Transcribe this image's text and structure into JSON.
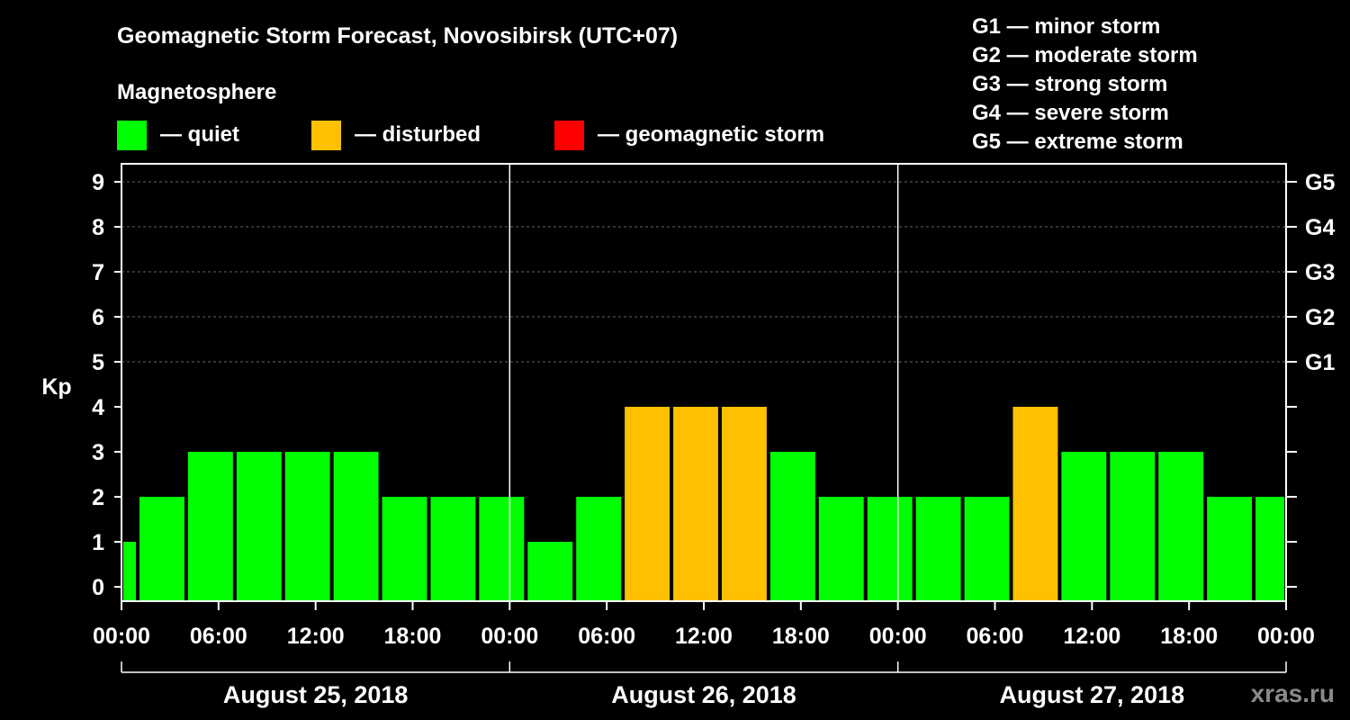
{
  "chart_data": {
    "type": "bar",
    "title": "Geomagnetic Storm Forecast, Novosibirsk (UTC+07)",
    "subtitle": "Magnetosphere",
    "ylabel": "Kp",
    "ylim": [
      0,
      9
    ],
    "yticks": [
      "0",
      "1",
      "2",
      "3",
      "4",
      "5",
      "6",
      "7",
      "8",
      "9"
    ],
    "storm_ticks": [
      {
        "kp": 5,
        "label": "G1"
      },
      {
        "kp": 6,
        "label": "G2"
      },
      {
        "kp": 7,
        "label": "G3"
      },
      {
        "kp": 8,
        "label": "G4"
      },
      {
        "kp": 9,
        "label": "G5"
      }
    ],
    "status_legend": [
      {
        "key": "quiet",
        "label": "— quiet",
        "color": "#00ff00"
      },
      {
        "key": "disturbed",
        "label": "— disturbed",
        "color": "#ffc000"
      },
      {
        "key": "storm",
        "label": "— geomagnetic storm",
        "color": "#ff0000"
      }
    ],
    "g_scale": [
      "G1 — minor storm",
      "G2 — moderate storm",
      "G3 — strong storm",
      "G4 — severe storm",
      "G5 — extreme storm"
    ],
    "x_range_hours": [
      0,
      72
    ],
    "x_ticks": [
      {
        "hour": 0,
        "label": "00:00"
      },
      {
        "hour": 6,
        "label": "06:00"
      },
      {
        "hour": 12,
        "label": "12:00"
      },
      {
        "hour": 18,
        "label": "18:00"
      },
      {
        "hour": 24,
        "label": "00:00"
      },
      {
        "hour": 30,
        "label": "06:00"
      },
      {
        "hour": 36,
        "label": "12:00"
      },
      {
        "hour": 42,
        "label": "18:00"
      },
      {
        "hour": 48,
        "label": "00:00"
      },
      {
        "hour": 54,
        "label": "06:00"
      },
      {
        "hour": 60,
        "label": "12:00"
      },
      {
        "hour": 66,
        "label": "18:00"
      },
      {
        "hour": 72,
        "label": "00:00"
      }
    ],
    "days": [
      "August 25, 2018",
      "August 26, 2018",
      "August 27, 2018"
    ],
    "day_boundaries_hours": [
      24,
      48
    ],
    "bars": [
      {
        "start": 0,
        "end": 1,
        "kp": 1
      },
      {
        "start": 1,
        "end": 4,
        "kp": 2
      },
      {
        "start": 4,
        "end": 7,
        "kp": 3
      },
      {
        "start": 7,
        "end": 10,
        "kp": 3
      },
      {
        "start": 10,
        "end": 13,
        "kp": 3
      },
      {
        "start": 13,
        "end": 16,
        "kp": 3
      },
      {
        "start": 16,
        "end": 19,
        "kp": 2
      },
      {
        "start": 19,
        "end": 22,
        "kp": 2
      },
      {
        "start": 22,
        "end": 25,
        "kp": 2
      },
      {
        "start": 25,
        "end": 28,
        "kp": 1
      },
      {
        "start": 28,
        "end": 31,
        "kp": 2
      },
      {
        "start": 31,
        "end": 34,
        "kp": 4
      },
      {
        "start": 34,
        "end": 37,
        "kp": 4
      },
      {
        "start": 37,
        "end": 40,
        "kp": 4
      },
      {
        "start": 40,
        "end": 43,
        "kp": 3
      },
      {
        "start": 43,
        "end": 46,
        "kp": 2
      },
      {
        "start": 46,
        "end": 49,
        "kp": 2
      },
      {
        "start": 49,
        "end": 52,
        "kp": 2
      },
      {
        "start": 52,
        "end": 55,
        "kp": 2
      },
      {
        "start": 55,
        "end": 58,
        "kp": 4
      },
      {
        "start": 58,
        "end": 61,
        "kp": 3
      },
      {
        "start": 61,
        "end": 64,
        "kp": 3
      },
      {
        "start": 64,
        "end": 67,
        "kp": 3
      },
      {
        "start": 67,
        "end": 70,
        "kp": 2
      },
      {
        "start": 70,
        "end": 72,
        "kp": 2
      }
    ],
    "watermark": "xras.ru"
  }
}
